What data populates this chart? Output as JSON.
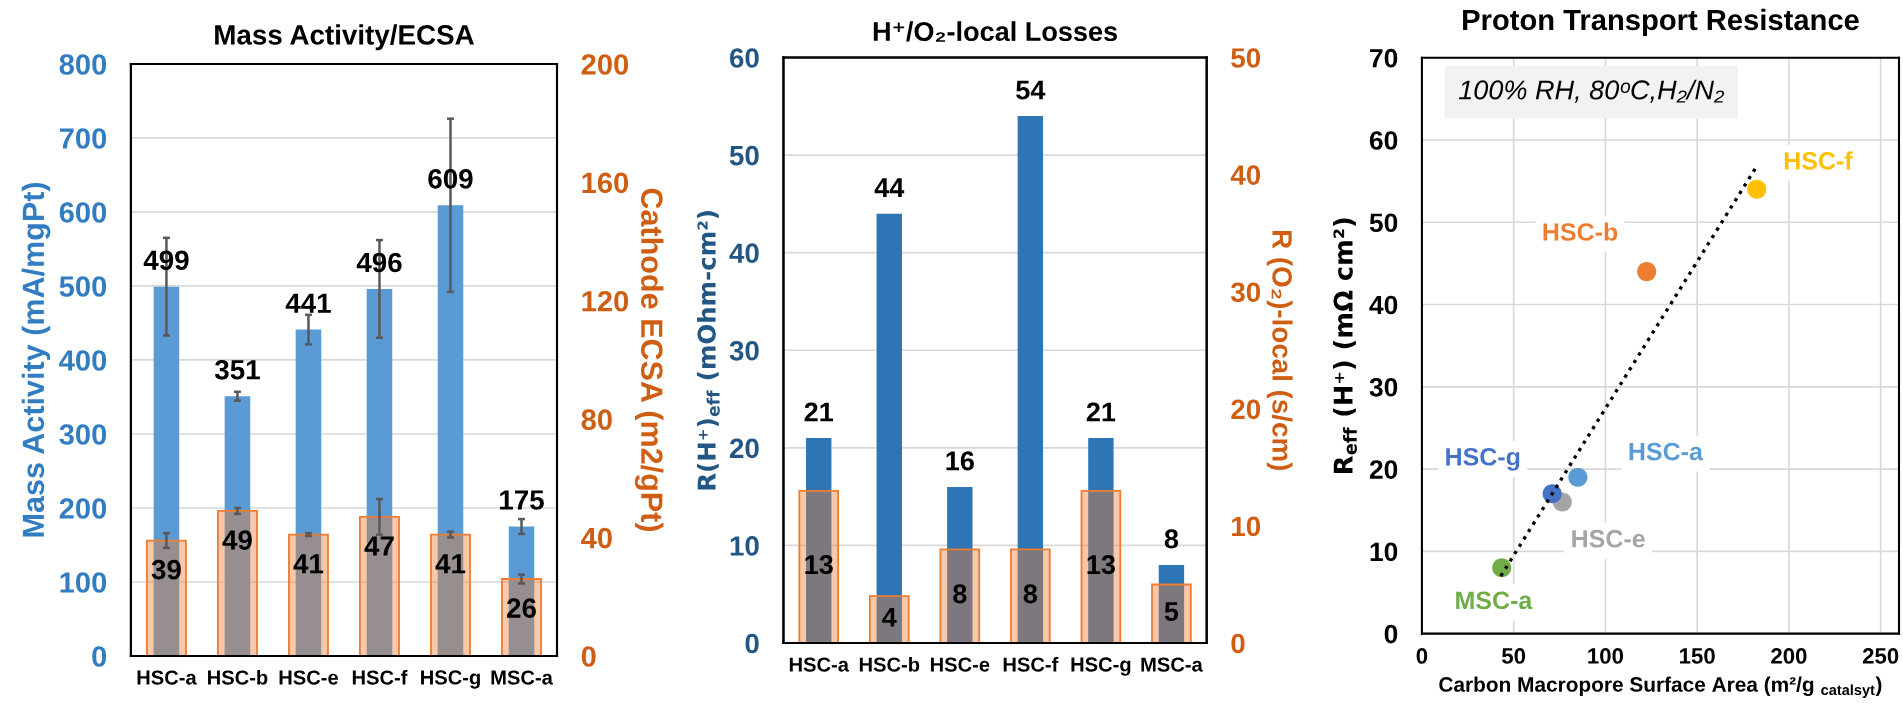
{
  "chart_data": [
    {
      "type": "bar",
      "title": "Mass Activity/ECSA",
      "ylabel": "Mass Activity (mA/mgPt)",
      "y2label": "Cathode ECSA (m2/gPt)",
      "categories": [
        "HSC-a",
        "HSC-b",
        "HSC-e",
        "HSC-f",
        "HSC-g",
        "MSC-a"
      ],
      "series": [
        {
          "color": "#5b9bd5",
          "values": [
            499,
            351,
            441,
            496,
            609,
            175
          ],
          "errors": [
            66,
            6,
            20,
            66,
            117,
            10
          ]
        },
        {
          "color": "#ed7d31",
          "axis": "y2",
          "values": [
            39,
            49,
            41,
            47,
            41,
            26
          ],
          "errors": [
            2.5,
            1,
            0.5,
            6,
            1,
            1.5
          ]
        }
      ],
      "ylim": [
        0,
        800
      ],
      "yticks": [
        0,
        100,
        200,
        300,
        400,
        500,
        600,
        700,
        800
      ],
      "y2lim": [
        0,
        200
      ],
      "y2ticks": [
        0,
        40,
        80,
        120,
        160,
        200
      ],
      "grid": "y",
      "data_labels": true
    },
    {
      "type": "bar",
      "title": "H⁺/O₂-local Losses",
      "ylabel": "R(H⁺)$_{eff}$ (mOhm-cm²)",
      "y2label": "R (O₂)-local (s/cm)",
      "categories": [
        "HSC-a",
        "HSC-b",
        "HSC-e",
        "HSC-f",
        "HSC-g",
        "MSC-a"
      ],
      "series": [
        {
          "color": "#2e75b6",
          "values": [
            21,
            44,
            16,
            54,
            21,
            8
          ]
        },
        {
          "color": "#ed7d31",
          "axis": "y2",
          "values": [
            13,
            4,
            8,
            8,
            13,
            5
          ]
        }
      ],
      "ylim": [
        0,
        60
      ],
      "yticks": [
        0,
        10,
        20,
        30,
        40,
        50,
        60
      ],
      "y2lim": [
        0,
        50
      ],
      "y2ticks": [
        0,
        10,
        20,
        30,
        40,
        50
      ],
      "grid": "y",
      "data_labels": true
    },
    {
      "type": "scatter",
      "title": "Proton Transport Resistance",
      "xlabel": "Carbon Macropore Surface Area (m²/g $_{catalsyt}$)",
      "ylabel": "R$_{eff}$ (H⁺) (mΩ cm²)",
      "annotations": [
        "100% RH, 80ᵒC,H₂/N₂"
      ],
      "series": [
        {
          "name": "HSC-a",
          "color": "#5b9bd5",
          "x": [
            85
          ],
          "values": [
            19
          ]
        },
        {
          "name": "HSC-b",
          "color": "#ed7d31",
          "x": [
            122.5
          ],
          "values": [
            44
          ]
        },
        {
          "name": "HSC-e",
          "color": "#a5a5a5",
          "x": [
            76.5
          ],
          "values": [
            16
          ]
        },
        {
          "name": "HSC-f",
          "color": "#ffc000",
          "x": [
            182.5
          ],
          "values": [
            54
          ]
        },
        {
          "name": "HSC-g",
          "color": "#4472c4",
          "x": [
            71
          ],
          "values": [
            17
          ]
        },
        {
          "name": "MSC-a",
          "color": "#70ad47",
          "x": [
            43.5
          ],
          "values": [
            8
          ]
        },
        {
          "type": "line",
          "color": "#000000",
          "line_style": "dotted",
          "marker": "none",
          "x": [
            43,
            183
          ],
          "values": [
            7,
            57
          ]
        }
      ],
      "xlim": [
        0,
        260
      ],
      "xticks": [
        0,
        50,
        100,
        150,
        200,
        250
      ],
      "ylim": [
        0,
        70
      ],
      "yticks": [
        0,
        10,
        20,
        30,
        40,
        50,
        60,
        70
      ],
      "grid": true,
      "marker": "circle"
    }
  ]
}
